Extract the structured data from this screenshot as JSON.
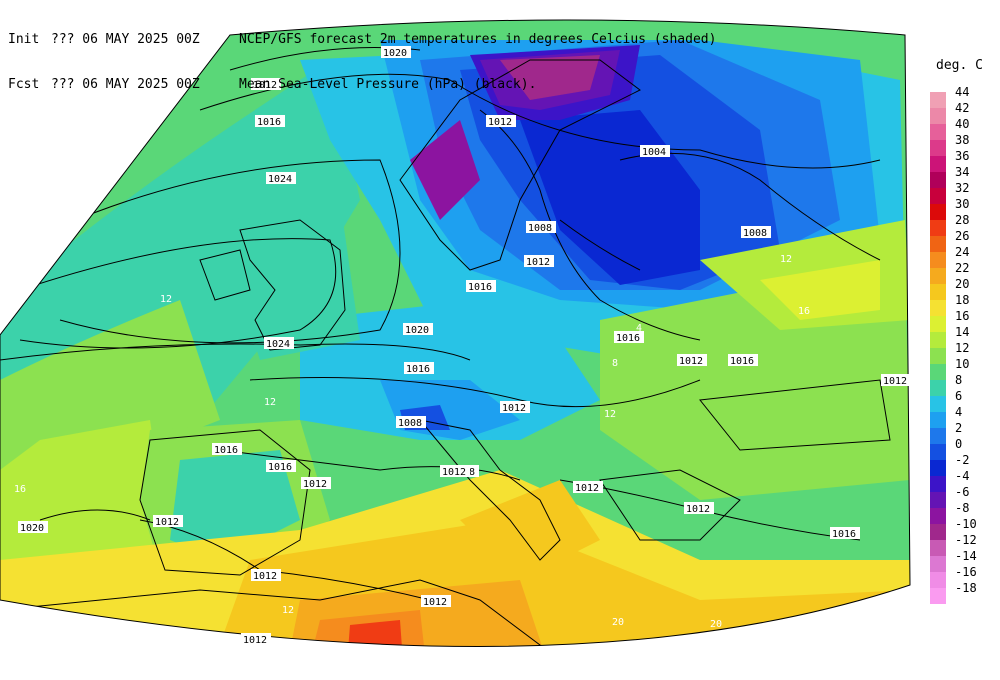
{
  "header": {
    "init_label": "Init",
    "init_value": "??? 06 MAY 2025 00Z",
    "fcst_label": "Fcst",
    "fcst_value": "??? 06 MAY 2025 00Z",
    "line1_desc": "NCEP/GFS forecast 2m temperatures in degrees Celcius (shaded)",
    "line2_desc": "Mean Sea-Level Pressure (hPa) (black)."
  },
  "legend": {
    "title": "deg. C",
    "levels": [
      {
        "label": "44",
        "color": "#f0a0b4"
      },
      {
        "label": "42",
        "color": "#ec88a8"
      },
      {
        "label": "40",
        "color": "#e6609a"
      },
      {
        "label": "38",
        "color": "#dc3a8a"
      },
      {
        "label": "36",
        "color": "#cc1478"
      },
      {
        "label": "34",
        "color": "#b0005a"
      },
      {
        "label": "32",
        "color": "#c8003c"
      },
      {
        "label": "30",
        "color": "#dc0a0a"
      },
      {
        "label": "28",
        "color": "#f03c14"
      },
      {
        "label": "26",
        "color": "#f06414"
      },
      {
        "label": "24",
        "color": "#f58c1e"
      },
      {
        "label": "22",
        "color": "#f5aa1e"
      },
      {
        "label": "20",
        "color": "#f5c81e"
      },
      {
        "label": "18",
        "color": "#f5e132"
      },
      {
        "label": "16",
        "color": "#dcf032"
      },
      {
        "label": "14",
        "color": "#b4eb3c"
      },
      {
        "label": "12",
        "color": "#8ce150"
      },
      {
        "label": "10",
        "color": "#5ad778"
      },
      {
        "label": "8",
        "color": "#3cd2aa"
      },
      {
        "label": "6",
        "color": "#28c3e6"
      },
      {
        "label": "4",
        "color": "#1ea0f0"
      },
      {
        "label": "2",
        "color": "#1e78eb"
      },
      {
        "label": "0",
        "color": "#1450e1"
      },
      {
        "label": "-2",
        "color": "#0a28d2"
      },
      {
        "label": "-4",
        "color": "#3c14c8"
      },
      {
        "label": "-6",
        "color": "#6414b4"
      },
      {
        "label": "-8",
        "color": "#8c14a0"
      },
      {
        "label": "-10",
        "color": "#a0288c"
      },
      {
        "label": "-12",
        "color": "#c85ab4"
      },
      {
        "label": "-14",
        "color": "#dc78d2"
      },
      {
        "label": "-16",
        "color": "#f08ce6"
      },
      {
        "label": "-18",
        "color": "#fa9bf0"
      }
    ]
  },
  "map": {
    "isobar_labels": [
      "1020",
      "1012",
      "1016",
      "1024",
      "1016",
      "1012",
      "1008",
      "1004",
      "1012",
      "1008",
      "1016",
      "1020",
      "1024",
      "1016",
      "1012",
      "1016",
      "1012",
      "1008",
      "1012",
      "1012",
      "1008",
      "1012",
      "1012",
      "1020",
      "1012",
      "1016",
      "1012",
      "1016",
      "1016",
      "1012",
      "1012",
      "1012",
      "1020"
    ],
    "temp_labels": [
      "4",
      "8",
      "12",
      "16",
      "20"
    ]
  }
}
